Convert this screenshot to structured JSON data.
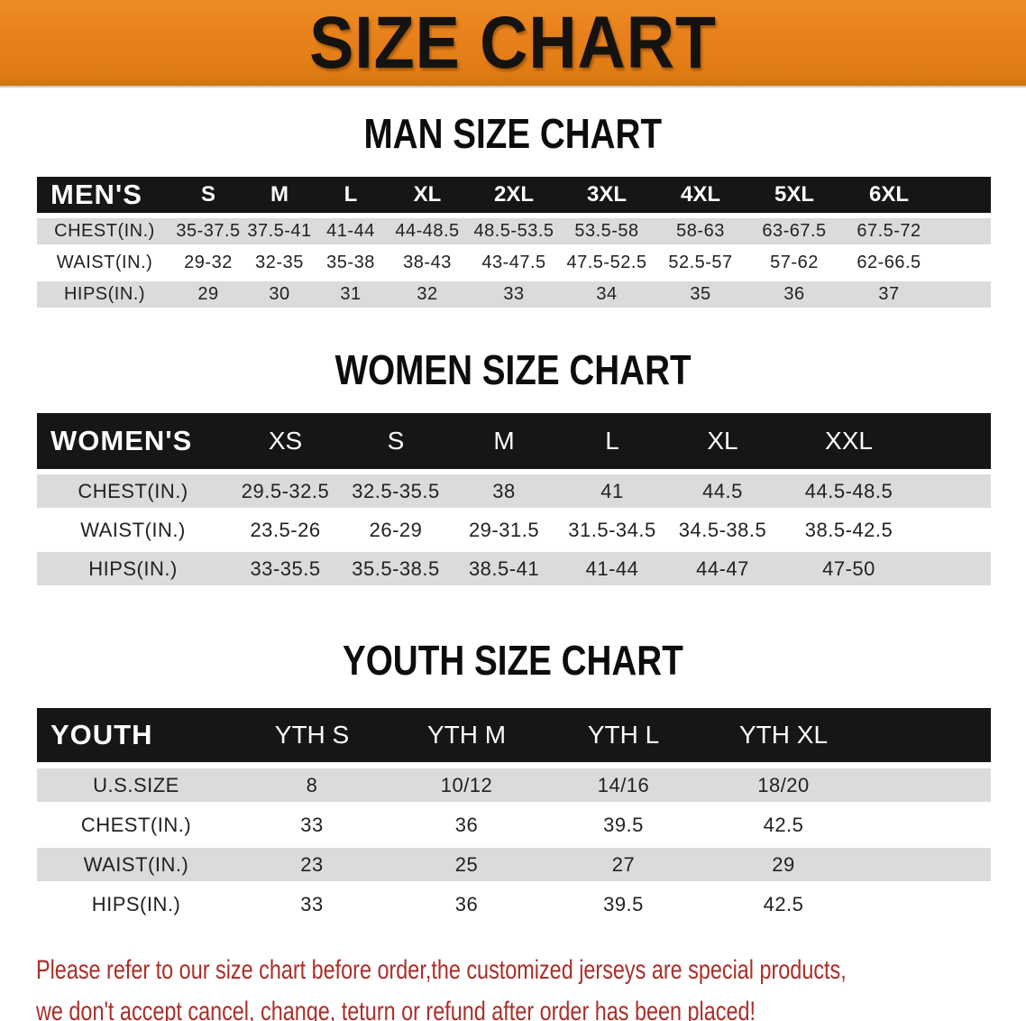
{
  "banner": {
    "title": "SIZE CHART"
  },
  "colors": {
    "banner_orange": "#e8811b",
    "table_header_black": "#161616",
    "row_stripe_gray": "#dbdbdb",
    "disclaimer_red": "#ab2e28"
  },
  "sections": [
    {
      "heading": "MAN SIZE CHART",
      "table": {
        "corner": "MEN'S",
        "sizes": [
          "S",
          "M",
          "L",
          "XL",
          "2XL",
          "3XL",
          "4XL",
          "5XL",
          "6XL"
        ],
        "rows": [
          {
            "label": "CHEST(IN.)",
            "values": [
              "35-37.5",
              "37.5-41",
              "41-44",
              "44-48.5",
              "48.5-53.5",
              "53.5-58",
              "58-63",
              "63-67.5",
              "67.5-72"
            ]
          },
          {
            "label": "WAIST(IN.)",
            "values": [
              "29-32",
              "32-35",
              "35-38",
              "38-43",
              "43-47.5",
              "47.5-52.5",
              "52.5-57",
              "57-62",
              "62-66.5"
            ]
          },
          {
            "label": "HIPS(IN.)",
            "values": [
              "29",
              "30",
              "31",
              "32",
              "33",
              "34",
              "35",
              "36",
              "37"
            ]
          }
        ]
      }
    },
    {
      "heading": "WOMEN SIZE CHART",
      "table": {
        "corner": "WOMEN'S",
        "sizes": [
          "XS",
          "S",
          "M",
          "L",
          "XL",
          "XXL"
        ],
        "rows": [
          {
            "label": "CHEST(IN.)",
            "values": [
              "29.5-32.5",
              "32.5-35.5",
              "38",
              "41",
              "44.5",
              "44.5-48.5"
            ]
          },
          {
            "label": "WAIST(IN.)",
            "values": [
              "23.5-26",
              "26-29",
              "29-31.5",
              "31.5-34.5",
              "34.5-38.5",
              "38.5-42.5"
            ]
          },
          {
            "label": "HIPS(IN.)",
            "values": [
              "33-35.5",
              "35.5-38.5",
              "38.5-41",
              "41-44",
              "44-47",
              "47-50"
            ]
          }
        ]
      }
    },
    {
      "heading": "YOUTH SIZE CHART",
      "table": {
        "corner": "YOUTH",
        "sizes": [
          "YTH S",
          "YTH M",
          "YTH L",
          "YTH XL"
        ],
        "rows": [
          {
            "label": "U.S.SIZE",
            "values": [
              "8",
              "10/12",
              "14/16",
              "18/20"
            ]
          },
          {
            "label": "CHEST(IN.)",
            "values": [
              "33",
              "36",
              "39.5",
              "42.5"
            ]
          },
          {
            "label": "WAIST(IN.)",
            "values": [
              "23",
              "25",
              "27",
              "29"
            ]
          },
          {
            "label": "HIPS(IN.)",
            "values": [
              "33",
              "36",
              "39.5",
              "42.5"
            ]
          }
        ]
      }
    }
  ],
  "disclaimer": {
    "lines": [
      "Please refer to our size chart before order,the customized jerseys are special products,",
      "we don't accept cancel, change, teturn or refund after order has been placed!"
    ]
  }
}
